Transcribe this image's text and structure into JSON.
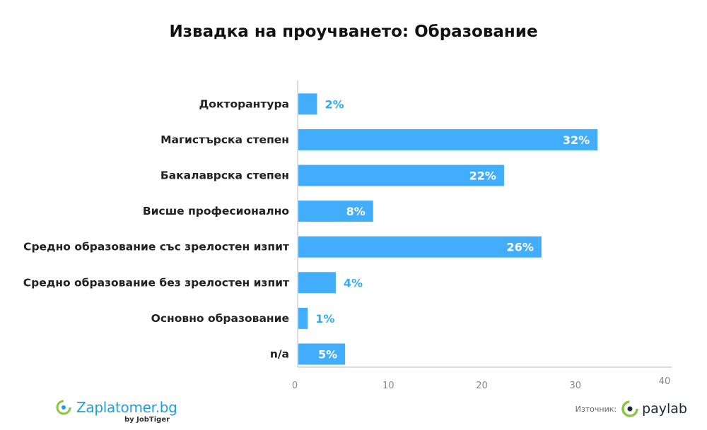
{
  "title": "Извадка на проучването: Образование",
  "chart_data": {
    "type": "bar",
    "orientation": "horizontal",
    "categories": [
      "Докторантура",
      "Магистърска степен",
      "Бакалаврска степен",
      "Висше професионално",
      "Средно образование със зрелостен изпит",
      "Средно образование без зрелостен изпит",
      "Основно образование",
      "n/a"
    ],
    "values": [
      2,
      32,
      22,
      8,
      26,
      4,
      1,
      5
    ],
    "value_labels": [
      "2%",
      "32%",
      "22%",
      "8%",
      "26%",
      "4%",
      "1%",
      "5%"
    ],
    "xlim": [
      0,
      40
    ],
    "x_ticks": [
      "0",
      "10",
      "20",
      "30",
      "40"
    ],
    "grid": false,
    "bar_color": "#42adfb",
    "label_color_outside": "#33aaf5"
  },
  "footer": {
    "left_brand": "Zaplatomer.bg",
    "left_by": "by JobTiger",
    "source_label": "Източник:",
    "right_brand": "paylab"
  },
  "colors": {
    "brand_blue": "#1e9fe0",
    "brand_green": "#8cc63f"
  }
}
